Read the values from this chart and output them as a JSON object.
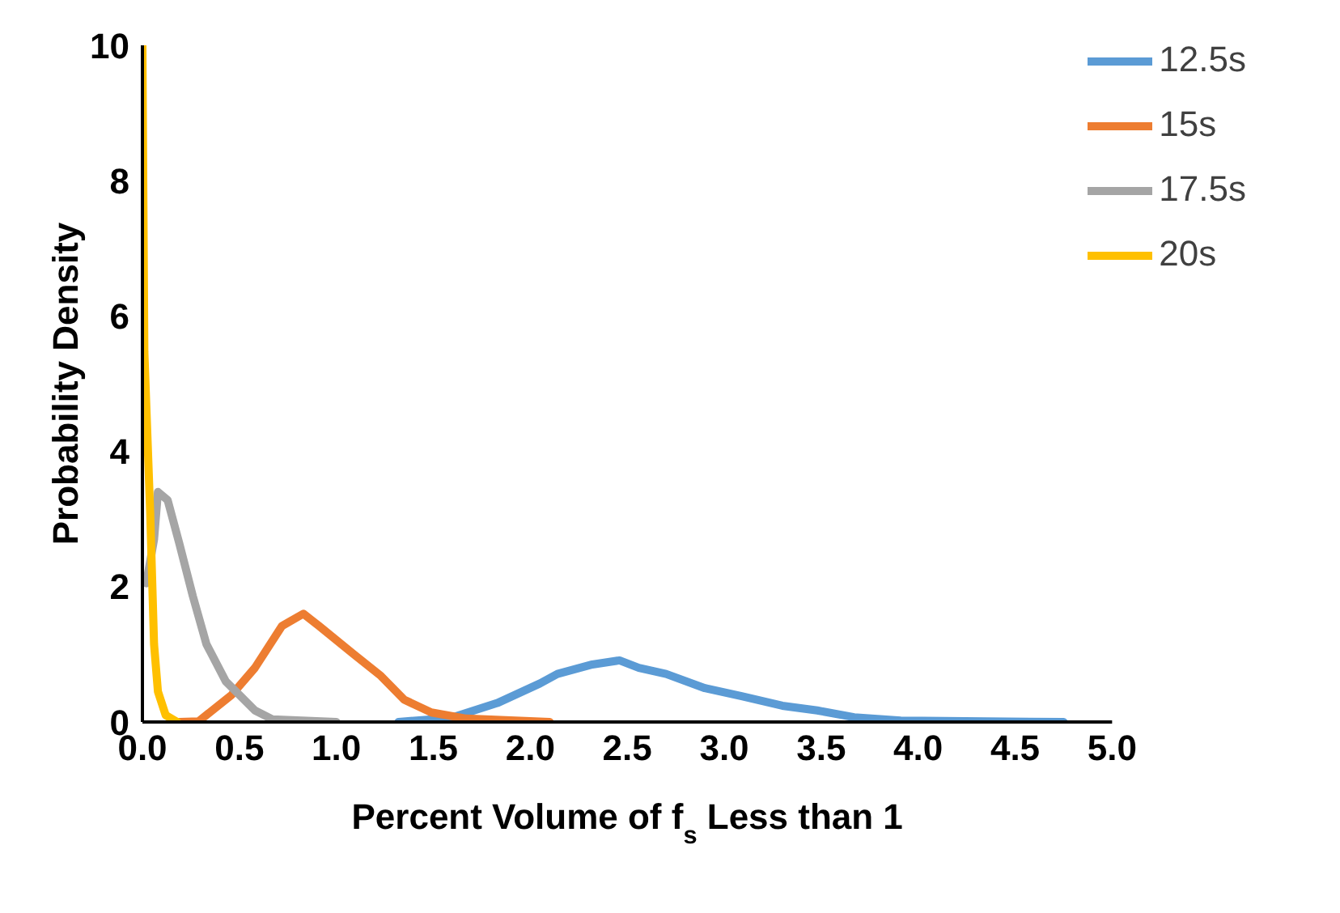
{
  "chart_data": {
    "type": "line",
    "xlabel": "Percent Volume of f$_{s}$ Less than 1",
    "ylabel": "Probability Density",
    "xlim": [
      0,
      5
    ],
    "xticks": [
      {
        "value": 0,
        "label": "0.0"
      },
      {
        "value": 0.5,
        "label": "0.5"
      },
      {
        "value": 1,
        "label": "1.0"
      },
      {
        "value": 1.5,
        "label": "1.5"
      },
      {
        "value": 2,
        "label": "2.0"
      },
      {
        "value": 2.5,
        "label": "2.5"
      },
      {
        "value": 3,
        "label": "3.0"
      },
      {
        "value": 3.5,
        "label": "3.5"
      },
      {
        "value": 4,
        "label": "4.0"
      },
      {
        "value": 4.5,
        "label": "4.5"
      },
      {
        "value": 5,
        "label": "5.0"
      }
    ],
    "ylim": [
      0,
      10
    ],
    "yticks": [
      0,
      2,
      4,
      6,
      8,
      10
    ],
    "grid": false,
    "legend": "top right",
    "marker": "none",
    "line_style": "solid",
    "series": [
      {
        "name": "12.5s",
        "color": "#5b9bd5",
        "x": [
          1.32,
          1.59,
          1.83,
          2.05,
          2.14,
          2.32,
          2.46,
          2.56,
          2.7,
          2.9,
          3.09,
          3.3,
          3.48,
          3.67,
          3.91,
          4.75
        ],
        "values": [
          0,
          0.06,
          0.28,
          0.57,
          0.71,
          0.85,
          0.91,
          0.8,
          0.71,
          0.5,
          0.38,
          0.24,
          0.17,
          0.07,
          0.02,
          0
        ]
      },
      {
        "name": "15s",
        "color": "#ed7d31",
        "x": [
          0.19,
          0.29,
          0.46,
          0.58,
          0.72,
          0.83,
          0.91,
          1.09,
          1.23,
          1.35,
          1.49,
          1.67,
          2.1
        ],
        "values": [
          0,
          0.01,
          0.4,
          0.8,
          1.42,
          1.6,
          1.42,
          1,
          0.68,
          0.33,
          0.14,
          0.05,
          0
        ]
      },
      {
        "name": "17.5s",
        "color": "#a5a5a5",
        "x": [
          0.02,
          0.06,
          0.08,
          0.13,
          0.19,
          0.26,
          0.33,
          0.43,
          0.58,
          0.67,
          1
        ],
        "values": [
          2.05,
          2.7,
          3.4,
          3.28,
          2.64,
          1.86,
          1.15,
          0.6,
          0.17,
          0.04,
          0
        ]
      },
      {
        "name": "20s",
        "color": "#ffc000",
        "x": [
          0,
          0.01,
          0.04,
          0.06,
          0.08,
          0.12,
          0.18
        ],
        "values": [
          10,
          5.47,
          3.1,
          1.15,
          0.45,
          0.1,
          0
        ]
      }
    ]
  }
}
